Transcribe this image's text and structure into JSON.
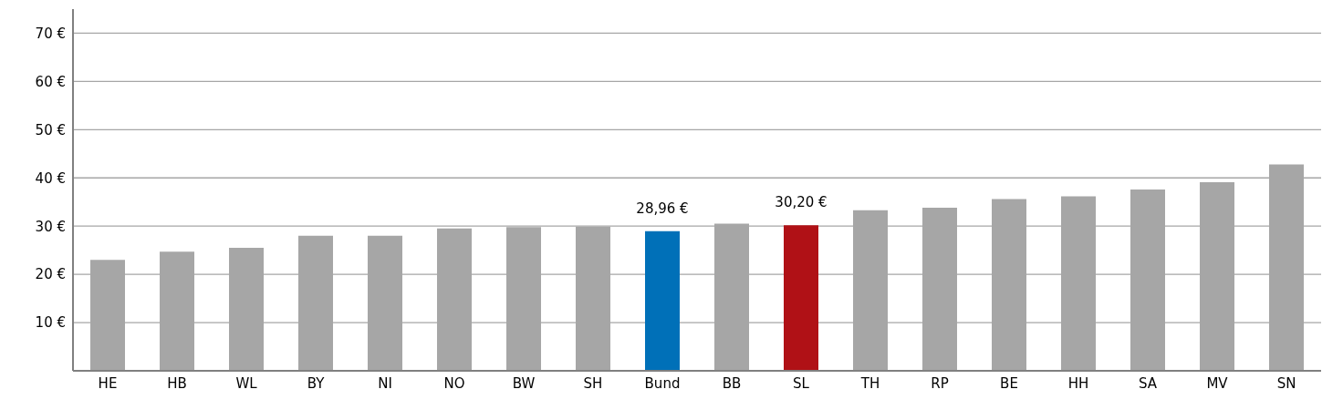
{
  "chart_data": {
    "type": "bar",
    "categories": [
      "HE",
      "HB",
      "WL",
      "BY",
      "NI",
      "NO",
      "BW",
      "SH",
      "Bund",
      "BB",
      "SL",
      "TH",
      "RP",
      "BE",
      "HH",
      "SA",
      "MV",
      "SN"
    ],
    "values": [
      23,
      24.7,
      25.5,
      28,
      28,
      29.5,
      29.8,
      29.9,
      28.96,
      30.5,
      30.2,
      33.3,
      33.8,
      35.6,
      36.2,
      37.6,
      39.1,
      42.8
    ],
    "colors": [
      "#a6a6a6",
      "#a6a6a6",
      "#a6a6a6",
      "#a6a6a6",
      "#a6a6a6",
      "#a6a6a6",
      "#a6a6a6",
      "#a6a6a6",
      "#0070b8",
      "#a6a6a6",
      "#b01116",
      "#a6a6a6",
      "#a6a6a6",
      "#a6a6a6",
      "#a6a6a6",
      "#a6a6a6",
      "#a6a6a6",
      "#a6a6a6"
    ],
    "value_labels": [
      null,
      null,
      null,
      null,
      null,
      null,
      null,
      null,
      "28,96 €",
      null,
      "30,20 €",
      null,
      null,
      null,
      null,
      null,
      null,
      null
    ],
    "ylim": [
      0,
      75
    ],
    "yticks": [
      {
        "value": 10,
        "label": "10 €"
      },
      {
        "value": 20,
        "label": "20 €"
      },
      {
        "value": 30,
        "label": "30 €"
      },
      {
        "value": 40,
        "label": "40 €"
      },
      {
        "value": 50,
        "label": "50 €"
      },
      {
        "value": 60,
        "label": "60 €"
      },
      {
        "value": 70,
        "label": "70 €"
      }
    ],
    "grid": "y"
  }
}
